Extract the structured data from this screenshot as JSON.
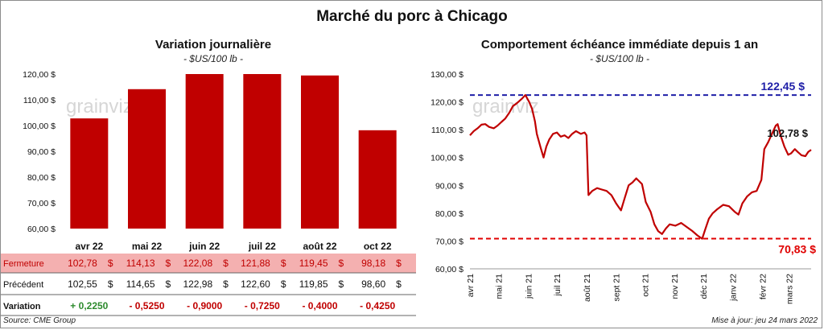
{
  "title": "Marché du porc à Chicago",
  "source": "Source: CME Group",
  "update": "Mise à jour: jeu 24 mars 2022",
  "watermark": "grainviz",
  "colors": {
    "bar": "#c00000",
    "line": "#c00000",
    "blue": "#1f1fa8",
    "red": "#e00000",
    "green": "#2e8b2e",
    "fermeture_bg": "#f4b0b0"
  },
  "chart_data": [
    {
      "type": "bar",
      "title": "Variation journalière",
      "unit": "- $US/100 lb -",
      "categories": [
        "avr 22",
        "mai 22",
        "juin 22",
        "juil 22",
        "août 22",
        "oct 22"
      ],
      "values": [
        102.78,
        114.13,
        122.08,
        121.88,
        119.45,
        98.18
      ],
      "ylim": [
        60,
        120
      ],
      "yticks": [
        "60,00 $",
        "70,00 $",
        "80,00 $",
        "90,00 $",
        "100,00 $",
        "110,00 $",
        "120,00 $"
      ],
      "table": {
        "rows": [
          {
            "label": "Fermeture",
            "values": [
              "102,78",
              "114,13",
              "122,08",
              "121,88",
              "119,45",
              "98,18"
            ],
            "suffix": "$"
          },
          {
            "label": "Précédent",
            "values": [
              "102,55",
              "114,65",
              "122,98",
              "122,60",
              "119,85",
              "98,60"
            ],
            "suffix": "$"
          },
          {
            "label": "Variation",
            "values": [
              "+ 0,2250",
              "- 0,5250",
              "- 0,9000",
              "- 0,7250",
              "- 0,4000",
              "- 0,4250"
            ]
          }
        ]
      }
    },
    {
      "type": "line",
      "title": "Comportement  échéance immédiate depuis 1 an",
      "unit": "- $US/100 lb -",
      "ylim": [
        60,
        130
      ],
      "yticks": [
        "60,00 $",
        "70,00 $",
        "80,00 $",
        "90,00 $",
        "100,00 $",
        "110,00 $",
        "120,00 $",
        "130,00 $"
      ],
      "xticks": [
        "avr 21",
        "mai 21",
        "juin 21",
        "juil 21",
        "août 21",
        "sept 21",
        "oct 21",
        "nov 21",
        "déc 21",
        "janv 22",
        "févr 22",
        "mars 22"
      ],
      "x_start": "2021-04-01",
      "x_end": "2022-03-24",
      "max_line": {
        "value": 122.45,
        "label": "122,45 $"
      },
      "min_line": {
        "value": 70.83,
        "label": "70,83 $"
      },
      "last_label": "102,78 $",
      "series": [
        {
          "values": [
            [
              "2021-04-01",
              108.0
            ],
            [
              "2021-04-05",
              109.5
            ],
            [
              "2021-04-09",
              110.5
            ],
            [
              "2021-04-13",
              111.8
            ],
            [
              "2021-04-17",
              112.0
            ],
            [
              "2021-04-21",
              111.0
            ],
            [
              "2021-04-26",
              110.5
            ],
            [
              "2021-04-30",
              111.5
            ],
            [
              "2021-05-04",
              112.8
            ],
            [
              "2021-05-08",
              114.0
            ],
            [
              "2021-05-12",
              116.0
            ],
            [
              "2021-05-16",
              118.5
            ],
            [
              "2021-05-20",
              119.5
            ],
            [
              "2021-05-25",
              121.0
            ],
            [
              "2021-05-29",
              122.45
            ],
            [
              "2021-06-02",
              120.0
            ],
            [
              "2021-06-05",
              117.5
            ],
            [
              "2021-06-08",
              113.0
            ],
            [
              "2021-06-10",
              108.5
            ],
            [
              "2021-06-14",
              103.5
            ],
            [
              "2021-06-17",
              100.0
            ],
            [
              "2021-06-20",
              104.0
            ],
            [
              "2021-06-23",
              106.5
            ],
            [
              "2021-06-27",
              108.5
            ],
            [
              "2021-07-01",
              109.0
            ],
            [
              "2021-07-05",
              107.5
            ],
            [
              "2021-07-09",
              108.0
            ],
            [
              "2021-07-13",
              107.0
            ],
            [
              "2021-07-17",
              108.5
            ],
            [
              "2021-07-21",
              109.5
            ],
            [
              "2021-07-26",
              108.5
            ],
            [
              "2021-07-30",
              109.0
            ],
            [
              "2021-08-01",
              108.0
            ],
            [
              "2021-08-03",
              86.5
            ],
            [
              "2021-08-07",
              88.0
            ],
            [
              "2021-08-12",
              89.0
            ],
            [
              "2021-08-17",
              88.5
            ],
            [
              "2021-08-22",
              88.0
            ],
            [
              "2021-08-27",
              86.5
            ],
            [
              "2021-09-01",
              83.5
            ],
            [
              "2021-09-06",
              81.0
            ],
            [
              "2021-09-10",
              85.5
            ],
            [
              "2021-09-14",
              90.0
            ],
            [
              "2021-09-18",
              91.0
            ],
            [
              "2021-09-22",
              92.5
            ],
            [
              "2021-09-28",
              90.5
            ],
            [
              "2021-10-02",
              84.0
            ],
            [
              "2021-10-07",
              80.5
            ],
            [
              "2021-10-11",
              76.0
            ],
            [
              "2021-10-15",
              73.5
            ],
            [
              "2021-10-19",
              72.5
            ],
            [
              "2021-10-23",
              74.5
            ],
            [
              "2021-10-27",
              76.0
            ],
            [
              "2021-11-02",
              75.5
            ],
            [
              "2021-11-08",
              76.5
            ],
            [
              "2021-11-14",
              75.0
            ],
            [
              "2021-11-20",
              73.5
            ],
            [
              "2021-11-25",
              72.0
            ],
            [
              "2021-11-30",
              70.83
            ],
            [
              "2021-12-03",
              74.0
            ],
            [
              "2021-12-07",
              78.0
            ],
            [
              "2021-12-11",
              80.0
            ],
            [
              "2021-12-16",
              81.5
            ],
            [
              "2021-12-22",
              83.0
            ],
            [
              "2021-12-28",
              82.5
            ],
            [
              "2022-01-03",
              80.5
            ],
            [
              "2022-01-07",
              79.5
            ],
            [
              "2022-01-11",
              83.5
            ],
            [
              "2022-01-16",
              86.0
            ],
            [
              "2022-01-21",
              87.5
            ],
            [
              "2022-01-26",
              88.0
            ],
            [
              "2022-01-31",
              92.0
            ],
            [
              "2022-02-03",
              103.0
            ],
            [
              "2022-02-07",
              105.5
            ],
            [
              "2022-02-11",
              108.5
            ],
            [
              "2022-02-15",
              111.5
            ],
            [
              "2022-02-17",
              112.0
            ],
            [
              "2022-02-20",
              108.0
            ],
            [
              "2022-02-24",
              104.0
            ],
            [
              "2022-02-28",
              101.0
            ],
            [
              "2022-03-03",
              101.5
            ],
            [
              "2022-03-07",
              103.0
            ],
            [
              "2022-03-10",
              102.0
            ],
            [
              "2022-03-14",
              100.8
            ],
            [
              "2022-03-18",
              100.5
            ],
            [
              "2022-03-21",
              102.0
            ],
            [
              "2022-03-24",
              102.78
            ]
          ]
        }
      ]
    }
  ]
}
